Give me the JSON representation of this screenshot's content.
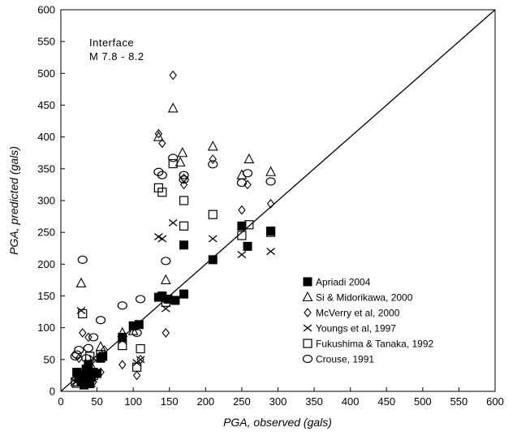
{
  "chart_data": {
    "type": "scatter",
    "title": "",
    "xlabel": "PGA, observed (gals)",
    "ylabel": "PGA, predicted (gals)",
    "xlim": [
      0,
      600
    ],
    "ylim": [
      0,
      600
    ],
    "xticks": [
      0,
      50,
      100,
      150,
      200,
      250,
      300,
      350,
      400,
      450,
      500,
      550,
      600
    ],
    "yticks": [
      0,
      50,
      100,
      150,
      200,
      250,
      300,
      350,
      400,
      450,
      500,
      550,
      600
    ],
    "grid": false,
    "legend_position": "lower-right",
    "annotation": [
      "Interface",
      "M 7.8 - 8.2"
    ],
    "reference_line": {
      "from": [
        0,
        0
      ],
      "to": [
        600,
        600
      ]
    },
    "series": [
      {
        "name": "Apriadi 2004",
        "marker": "filled-square",
        "points": [
          [
            22,
            30
          ],
          [
            25,
            20
          ],
          [
            28,
            15
          ],
          [
            30,
            28
          ],
          [
            32,
            10
          ],
          [
            33,
            25
          ],
          [
            35,
            35
          ],
          [
            37,
            18
          ],
          [
            38,
            42
          ],
          [
            40,
            12
          ],
          [
            40,
            30
          ],
          [
            42,
            22
          ],
          [
            45,
            30
          ],
          [
            50,
            28
          ],
          [
            55,
            52
          ],
          [
            58,
            55
          ],
          [
            85,
            85
          ],
          [
            100,
            103
          ],
          [
            108,
            105
          ],
          [
            135,
            148
          ],
          [
            140,
            150
          ],
          [
            148,
            145
          ],
          [
            158,
            143
          ],
          [
            170,
            153
          ],
          [
            170,
            230
          ],
          [
            210,
            207
          ],
          [
            250,
            260
          ],
          [
            258,
            228
          ],
          [
            290,
            252
          ]
        ]
      },
      {
        "name": "Si & Midorikawa, 2000",
        "marker": "open-triangle",
        "points": [
          [
            22,
            12
          ],
          [
            28,
            170
          ],
          [
            35,
            22
          ],
          [
            42,
            40
          ],
          [
            55,
            70
          ],
          [
            85,
            92
          ],
          [
            100,
            95
          ],
          [
            135,
            400
          ],
          [
            145,
            175
          ],
          [
            155,
            445
          ],
          [
            165,
            360
          ],
          [
            168,
            375
          ],
          [
            210,
            385
          ],
          [
            250,
            340
          ],
          [
            260,
            365
          ],
          [
            290,
            345
          ]
        ]
      },
      {
        "name": "McVerry et al, 2000",
        "marker": "open-diamond",
        "points": [
          [
            20,
            20
          ],
          [
            25,
            52
          ],
          [
            30,
            92
          ],
          [
            35,
            15
          ],
          [
            38,
            85
          ],
          [
            40,
            35
          ],
          [
            45,
            15
          ],
          [
            55,
            30
          ],
          [
            60,
            65
          ],
          [
            85,
            42
          ],
          [
            105,
            25
          ],
          [
            110,
            50
          ],
          [
            135,
            405
          ],
          [
            140,
            390
          ],
          [
            145,
            92
          ],
          [
            155,
            497
          ],
          [
            170,
            335
          ],
          [
            170,
            325
          ],
          [
            210,
            365
          ],
          [
            250,
            285
          ],
          [
            258,
            325
          ],
          [
            290,
            295
          ]
        ]
      },
      {
        "name": "Youngs et al, 1997",
        "marker": "cross",
        "points": [
          [
            20,
            15
          ],
          [
            28,
            127
          ],
          [
            32,
            20
          ],
          [
            38,
            45
          ],
          [
            42,
            12
          ],
          [
            45,
            52
          ],
          [
            55,
            55
          ],
          [
            85,
            80
          ],
          [
            105,
            45
          ],
          [
            110,
            50
          ],
          [
            135,
            243
          ],
          [
            140,
            240
          ],
          [
            145,
            130
          ],
          [
            155,
            265
          ],
          [
            170,
            230
          ],
          [
            210,
            240
          ],
          [
            250,
            215
          ],
          [
            290,
            220
          ]
        ]
      },
      {
        "name": "Fukushima & Tanaka, 1992",
        "marker": "open-square",
        "points": [
          [
            20,
            15
          ],
          [
            30,
            122
          ],
          [
            35,
            32
          ],
          [
            40,
            55
          ],
          [
            45,
            25
          ],
          [
            55,
            58
          ],
          [
            85,
            72
          ],
          [
            105,
            38
          ],
          [
            110,
            67
          ],
          [
            135,
            320
          ],
          [
            140,
            313
          ],
          [
            145,
            140
          ],
          [
            155,
            358
          ],
          [
            170,
            300
          ],
          [
            170,
            260
          ],
          [
            210,
            278
          ],
          [
            250,
            245
          ],
          [
            260,
            262
          ],
          [
            290,
            250
          ]
        ]
      },
      {
        "name": "Crouse, 1991",
        "marker": "open-circle",
        "points": [
          [
            20,
            55
          ],
          [
            22,
            58
          ],
          [
            25,
            65
          ],
          [
            30,
            207
          ],
          [
            35,
            52
          ],
          [
            38,
            68
          ],
          [
            42,
            25
          ],
          [
            45,
            85
          ],
          [
            55,
            112
          ],
          [
            85,
            135
          ],
          [
            105,
            92
          ],
          [
            110,
            145
          ],
          [
            135,
            345
          ],
          [
            140,
            340
          ],
          [
            145,
            205
          ],
          [
            155,
            367
          ],
          [
            170,
            340
          ],
          [
            170,
            333
          ],
          [
            210,
            357
          ],
          [
            250,
            328
          ],
          [
            258,
            343
          ],
          [
            290,
            330
          ]
        ]
      }
    ]
  }
}
